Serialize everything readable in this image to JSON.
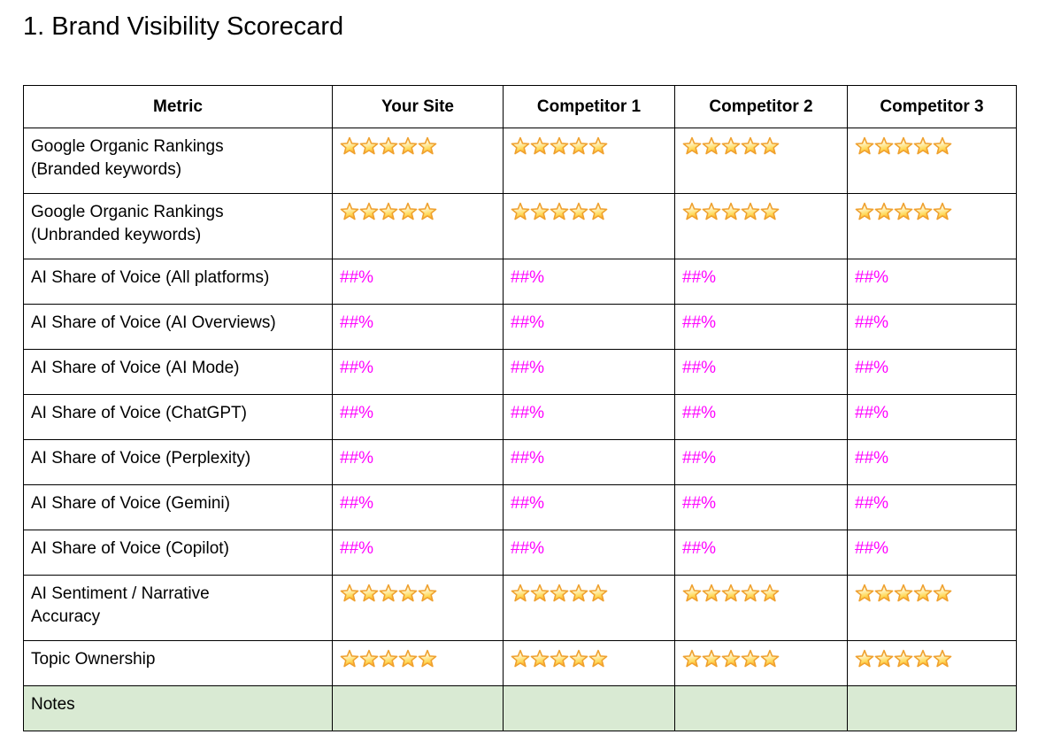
{
  "title": "1. Brand Visibility Scorecard",
  "colors": {
    "value_text": "#ff00ff",
    "notes_row_bg": "#d9ead3",
    "table_border": "#000000",
    "star_outline": "#efa02e",
    "star_gradient": [
      "#fffef7",
      "#fff1bb",
      "#ffd957",
      "#ffae2e"
    ]
  },
  "table": {
    "columns": [
      "Metric",
      "Your Site",
      "Competitor 1",
      "Competitor 2",
      "Competitor 3"
    ],
    "rows": [
      {
        "metric": "Google Organic Rankings\n(Branded keywords)",
        "type": "stars",
        "stars": [
          5,
          5,
          5,
          5
        ]
      },
      {
        "metric": "Google Organic Rankings\n(Unbranded keywords)",
        "type": "stars",
        "stars": [
          5,
          5,
          5,
          5
        ]
      },
      {
        "metric": "AI Share of Voice (All platforms)",
        "type": "percent",
        "values": [
          "##%",
          "##%",
          "##%",
          "##%"
        ]
      },
      {
        "metric": "AI Share of Voice (AI Overviews)",
        "type": "percent",
        "values": [
          "##%",
          "##%",
          "##%",
          "##%"
        ]
      },
      {
        "metric": "AI Share of Voice (AI Mode)",
        "type": "percent",
        "values": [
          "##%",
          "##%",
          "##%",
          "##%"
        ]
      },
      {
        "metric": "AI Share of Voice (ChatGPT)",
        "type": "percent",
        "values": [
          "##%",
          "##%",
          "##%",
          "##%"
        ]
      },
      {
        "metric": "AI Share of Voice (Perplexity)",
        "type": "percent",
        "values": [
          "##%",
          "##%",
          "##%",
          "##%"
        ]
      },
      {
        "metric": "AI Share of Voice (Gemini)",
        "type": "percent",
        "values": [
          "##%",
          "##%",
          "##%",
          "##%"
        ]
      },
      {
        "metric": "AI Share of Voice (Copilot)",
        "type": "percent",
        "values": [
          "##%",
          "##%",
          "##%",
          "##%"
        ]
      },
      {
        "metric": "AI Sentiment / Narrative\nAccuracy",
        "type": "stars",
        "stars": [
          5,
          5,
          5,
          5
        ]
      },
      {
        "metric": "Topic Ownership",
        "type": "stars",
        "stars": [
          5,
          5,
          5,
          5
        ]
      },
      {
        "metric": "Notes",
        "type": "notes",
        "values": [
          "",
          "",
          "",
          ""
        ]
      }
    ]
  }
}
